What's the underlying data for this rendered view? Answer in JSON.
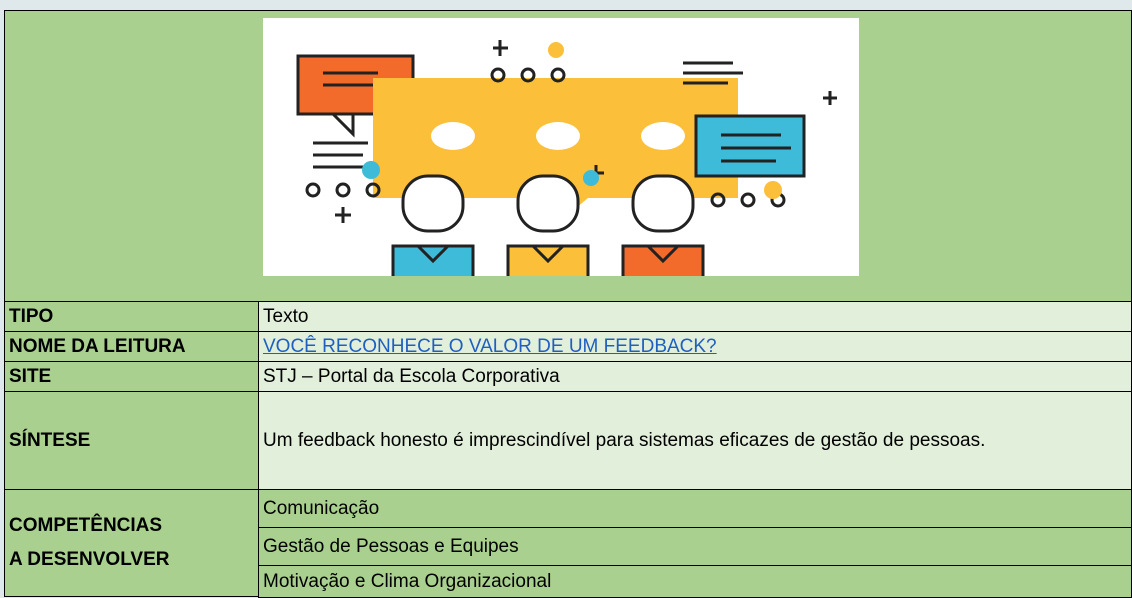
{
  "table": {
    "rows": [
      {
        "label": "TIPO",
        "value": "Texto"
      },
      {
        "label": "NOME DA LEITURA",
        "value": "VOCÊ RECONHECE O VALOR DE UM FEEDBACK?"
      },
      {
        "label": "SITE",
        "value": "STJ – Portal da Escola Corporativa"
      },
      {
        "label": "SÍNTESE",
        "value": "Um feedback honesto é imprescindível para sistemas eficazes de gestão de pessoas."
      }
    ],
    "competencias": {
      "label": "COMPETÊNCIAS A DESENVOLVER",
      "values": [
        "Comunicação",
        "Gestão de Pessoas e Equipes",
        "Motivação e Clima Organizacional"
      ]
    }
  }
}
